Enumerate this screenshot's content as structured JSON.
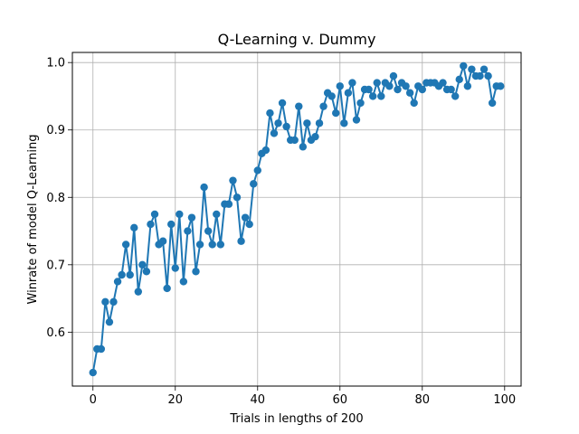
{
  "chart_data": {
    "type": "line",
    "title": "Q-Learning v. Dummy",
    "xlabel": "Trials in lengths of 200",
    "ylabel": "Winrate of model Q-Learning",
    "xlim": [
      -5,
      104
    ],
    "ylim": [
      0.52,
      1.015
    ],
    "xticks": [
      0,
      20,
      40,
      60,
      80,
      100
    ],
    "yticks": [
      0.6,
      0.7,
      0.8,
      0.9,
      1.0
    ],
    "xtick_labels": [
      "0",
      "20",
      "40",
      "60",
      "80",
      "100"
    ],
    "ytick_labels": [
      "0.6",
      "0.7",
      "0.8",
      "0.9",
      "1.0"
    ],
    "grid": true,
    "series": [
      {
        "color": "#1f77b4",
        "marker": "circle",
        "x": [
          0,
          1,
          2,
          3,
          4,
          5,
          6,
          7,
          8,
          9,
          10,
          11,
          12,
          13,
          14,
          15,
          16,
          17,
          18,
          19,
          20,
          21,
          22,
          23,
          24,
          25,
          26,
          27,
          28,
          29,
          30,
          31,
          32,
          33,
          34,
          35,
          36,
          37,
          38,
          39,
          40,
          41,
          42,
          43,
          44,
          45,
          46,
          47,
          48,
          49,
          50,
          51,
          52,
          53,
          54,
          55,
          56,
          57,
          58,
          59,
          60,
          61,
          62,
          63,
          64,
          65,
          66,
          67,
          68,
          69,
          70,
          71,
          72,
          73,
          74,
          75,
          76,
          77,
          78,
          79,
          80,
          81,
          82,
          83,
          84,
          85,
          86,
          87,
          88,
          89,
          90,
          91,
          92,
          93,
          94,
          95,
          96,
          97,
          98,
          99
        ],
        "y": [
          0.54,
          0.575,
          0.575,
          0.645,
          0.615,
          0.645,
          0.675,
          0.685,
          0.73,
          0.685,
          0.755,
          0.66,
          0.7,
          0.69,
          0.76,
          0.775,
          0.73,
          0.735,
          0.665,
          0.76,
          0.695,
          0.775,
          0.675,
          0.75,
          0.77,
          0.69,
          0.73,
          0.815,
          0.75,
          0.73,
          0.775,
          0.73,
          0.79,
          0.79,
          0.825,
          0.8,
          0.735,
          0.77,
          0.76,
          0.82,
          0.84,
          0.865,
          0.87,
          0.925,
          0.895,
          0.91,
          0.94,
          0.905,
          0.885,
          0.885,
          0.935,
          0.875,
          0.91,
          0.885,
          0.89,
          0.91,
          0.935,
          0.955,
          0.95,
          0.925,
          0.965,
          0.91,
          0.955,
          0.97,
          0.915,
          0.94,
          0.96,
          0.96,
          0.95,
          0.97,
          0.95,
          0.97,
          0.965,
          0.98,
          0.96,
          0.97,
          0.965,
          0.955,
          0.94,
          0.965,
          0.96,
          0.97,
          0.97,
          0.97,
          0.965,
          0.97,
          0.96,
          0.96,
          0.95,
          0.975,
          0.995,
          0.965,
          0.99,
          0.98,
          0.98,
          0.99,
          0.98,
          0.94,
          0.965,
          0.965
        ]
      }
    ]
  }
}
